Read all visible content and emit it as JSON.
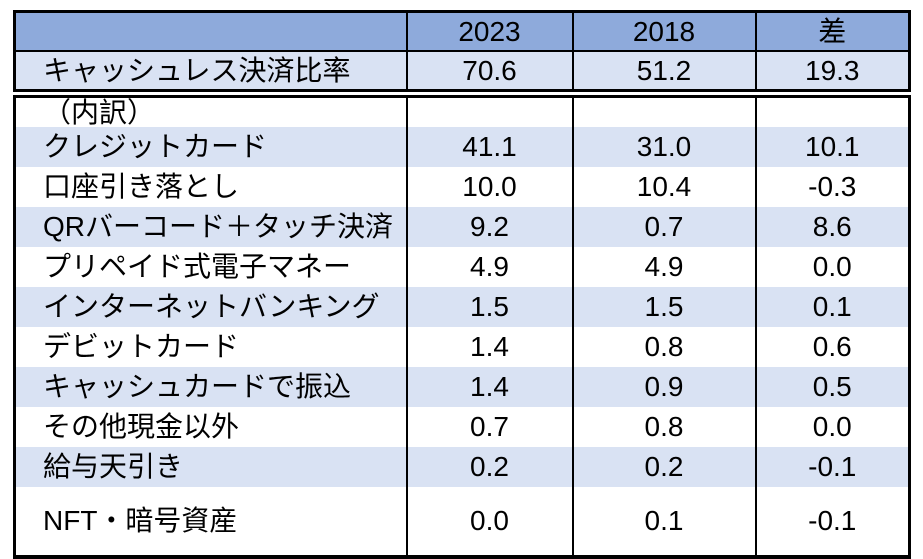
{
  "colors": {
    "header_bg": "#8EAADB",
    "band_bg": "#D9E2F3",
    "border": "#000000",
    "text": "#000000"
  },
  "header": {
    "col_label": "",
    "col_2023": "2023",
    "col_2018": "2018",
    "col_diff": "差"
  },
  "rows": [
    {
      "label": "キャッシュレス決済比率",
      "y2023": "70.6",
      "y2018": "51.2",
      "diff": "19.3"
    },
    {
      "label": "（内訳）",
      "y2023": "",
      "y2018": "",
      "diff": ""
    },
    {
      "label": "クレジットカード",
      "y2023": "41.1",
      "y2018": "31.0",
      "diff": "10.1"
    },
    {
      "label": "口座引き落とし",
      "y2023": "10.0",
      "y2018": "10.4",
      "diff": "-0.3"
    },
    {
      "label": "QRバーコード＋タッチ決済",
      "y2023": "9.2",
      "y2018": "0.7",
      "diff": "8.6"
    },
    {
      "label": "プリペイド式電子マネー",
      "y2023": "4.9",
      "y2018": "4.9",
      "diff": "0.0"
    },
    {
      "label": "インターネットバンキング",
      "y2023": "1.5",
      "y2018": "1.5",
      "diff": "0.1"
    },
    {
      "label": "デビットカード",
      "y2023": "1.4",
      "y2018": "0.8",
      "diff": "0.6"
    },
    {
      "label": "キャッシュカードで振込",
      "y2023": "1.4",
      "y2018": "0.9",
      "diff": "0.5"
    },
    {
      "label": "その他現金以外",
      "y2023": "0.7",
      "y2018": "0.8",
      "diff": "0.0"
    },
    {
      "label": "給与天引き",
      "y2023": "0.2",
      "y2018": "0.2",
      "diff": "-0.1"
    },
    {
      "label": "NFT・暗号資産",
      "y2023": "0.0",
      "y2018": "0.1",
      "diff": "-0.1"
    }
  ],
  "chart_data": {
    "type": "table",
    "columns": [
      "",
      "2023",
      "2018",
      "差"
    ],
    "categories": [
      "キャッシュレス決済比率",
      "（内訳）",
      "クレジットカード",
      "口座引き落とし",
      "QRバーコード＋タッチ決済",
      "プリペイド式電子マネー",
      "インターネットバンキング",
      "デビットカード",
      "キャッシュカードで振込",
      "その他現金以外",
      "給与天引き",
      "NFT・暗号資産"
    ],
    "series": [
      {
        "name": "2023",
        "values": [
          70.6,
          null,
          41.1,
          10.0,
          9.2,
          4.9,
          1.5,
          1.4,
          1.4,
          0.7,
          0.2,
          0.0
        ]
      },
      {
        "name": "2018",
        "values": [
          51.2,
          null,
          31.0,
          10.4,
          0.7,
          4.9,
          1.5,
          0.8,
          0.9,
          0.8,
          0.2,
          0.1
        ]
      },
      {
        "name": "差",
        "values": [
          19.3,
          null,
          10.1,
          -0.3,
          8.6,
          0.0,
          0.1,
          0.6,
          0.5,
          0.0,
          -0.1,
          -0.1
        ]
      }
    ],
    "layout": {
      "grid": "column-lines-only",
      "header_fill": "#8EAADB",
      "banded_rows": true
    }
  }
}
